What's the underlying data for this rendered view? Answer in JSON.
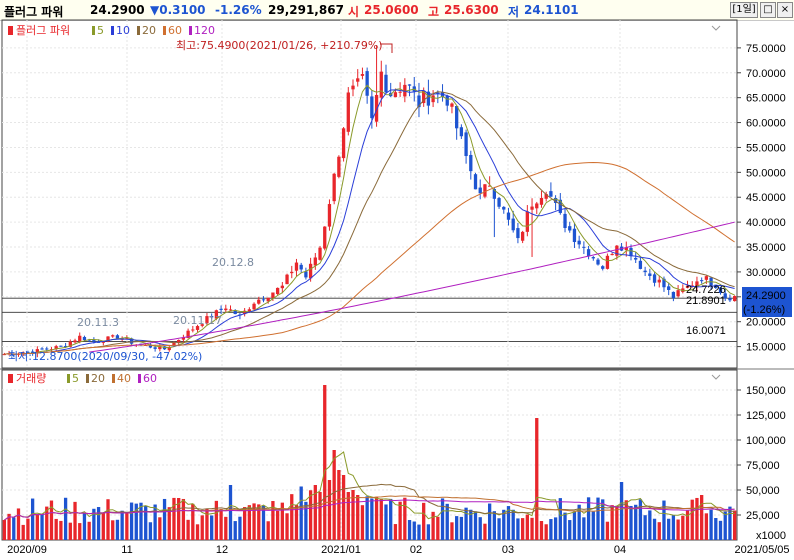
{
  "header": {
    "name": "플러그 파워",
    "price": "24.2900",
    "change": "▼0.3100",
    "change_pct": "-1.26%",
    "volume": "29,291,867",
    "open_label": "시",
    "open": "25.0600",
    "high_label": "고",
    "high": "25.6300",
    "low_label": "저",
    "low": "24.1101",
    "period": "[1일]"
  },
  "colors": {
    "up": "#e8262b",
    "down": "#1d54d1",
    "ma5": "#8a9a2a",
    "ma10": "#2a3ed8",
    "ma20": "#8a6a3a",
    "ma60": "#d07030",
    "ma120": "#b020c0",
    "vma40": "#c07030"
  },
  "price_legend": {
    "title": "플러그 파워",
    "items": [
      {
        "label": "5",
        "color": "#8a9a2a"
      },
      {
        "label": "10",
        "color": "#2a3ed8"
      },
      {
        "label": "20",
        "color": "#8a6a3a"
      },
      {
        "label": "60",
        "color": "#d07030"
      },
      {
        "label": "120",
        "color": "#b020c0"
      }
    ]
  },
  "volume_legend": {
    "title": "거래량",
    "items": [
      {
        "label": "5",
        "color": "#8a9a2a"
      },
      {
        "label": "20",
        "color": "#8a6a3a"
      },
      {
        "label": "40",
        "color": "#c07030"
      },
      {
        "label": "60",
        "color": "#b020c0"
      }
    ]
  },
  "annotations": {
    "high": "최고:75.4900(2021/01/26, +210.79%)",
    "low": "최저:12.8700(2020/09/30, -47.02%)",
    "points": [
      "20.11.3",
      "20.12.8",
      "20.11.17"
    ]
  },
  "ref_lines": {
    "levels": [
      "24.7226",
      "21.8901",
      "16.0071"
    ]
  },
  "price_box": {
    "value": "24.2900",
    "pct": "(-1.26%)"
  },
  "chart_data": [
    {
      "type": "candlestick",
      "name": "price",
      "y_ticks": [
        "75.0000",
        "70.0000",
        "65.0000",
        "60.0000",
        "55.0000",
        "50.0000",
        "45.0000",
        "40.0000",
        "35.0000",
        "30.0000",
        "25.0000",
        "20.0000",
        "15.0000"
      ],
      "ylim": [
        10.7,
        80.6
      ],
      "x_labels": [
        "2020/09",
        "11",
        "12",
        "2021/01",
        "02",
        "03",
        "04",
        "2021/05/05"
      ],
      "anchors": [
        [
          0,
          13.5
        ],
        [
          6,
          14.0
        ],
        [
          12,
          15.0
        ],
        [
          16,
          17.0
        ],
        [
          19,
          16.0
        ],
        [
          24,
          17.0
        ],
        [
          28,
          15.5
        ],
        [
          31,
          15.0
        ],
        [
          34,
          14.5
        ],
        [
          37,
          16.5
        ],
        [
          42,
          20.0
        ],
        [
          47,
          23.0
        ],
        [
          50,
          21.0
        ],
        [
          53,
          24.0
        ],
        [
          56,
          25.5
        ],
        [
          59,
          27.0
        ],
        [
          62,
          32.0
        ],
        [
          64,
          29.0
        ],
        [
          67,
          35.0
        ],
        [
          70,
          49.0
        ],
        [
          73,
          65.0
        ],
        [
          76,
          68.0
        ],
        [
          78,
          60.0
        ],
        [
          80,
          70.0
        ],
        [
          82,
          66.0
        ],
        [
          85,
          68.0
        ],
        [
          88,
          64.0
        ],
        [
          91,
          66.0
        ],
        [
          94,
          65.0
        ],
        [
          98,
          53.0
        ],
        [
          101,
          45.0
        ],
        [
          103,
          48.0
        ],
        [
          106,
          42.0
        ],
        [
          109,
          36.0
        ],
        [
          112,
          44.0
        ],
        [
          115,
          47.0
        ],
        [
          118,
          41.0
        ],
        [
          121,
          37.0
        ],
        [
          124,
          34.0
        ],
        [
          127,
          31.0
        ],
        [
          130,
          36.0
        ],
        [
          133,
          34.0
        ],
        [
          136,
          30.0
        ],
        [
          139,
          28.0
        ],
        [
          142,
          25.0
        ],
        [
          145,
          27.0
        ],
        [
          148,
          29.0
        ],
        [
          151,
          27.5
        ],
        [
          153,
          25.0
        ]
      ],
      "special_highs": [
        [
          79,
          75.49
        ]
      ],
      "special_lows": [
        [
          7,
          12.87
        ],
        [
          104,
          37.0
        ],
        [
          112,
          33.0
        ]
      ],
      "ma120_end": 40.0,
      "ma60_peak": 52.0
    },
    {
      "type": "bar",
      "name": "volume",
      "unit": "x1000",
      "y_ticks": [
        "150,000",
        "125,000",
        "100,000",
        "75,000",
        "50,000",
        "25,000"
      ],
      "ylim": [
        0,
        170000
      ],
      "spikes": [
        [
          68,
          155000
        ],
        [
          69,
          60000
        ],
        [
          70,
          90000
        ],
        [
          71,
          70000
        ],
        [
          67,
          48000
        ],
        [
          66,
          55000
        ],
        [
          72,
          65000
        ],
        [
          73,
          48000
        ],
        [
          74,
          50000
        ],
        [
          75,
          45000
        ],
        [
          48,
          55000
        ],
        [
          37,
          42000
        ],
        [
          113,
          122000
        ],
        [
          131,
          58000
        ],
        [
          148,
          45000
        ]
      ]
    }
  ]
}
